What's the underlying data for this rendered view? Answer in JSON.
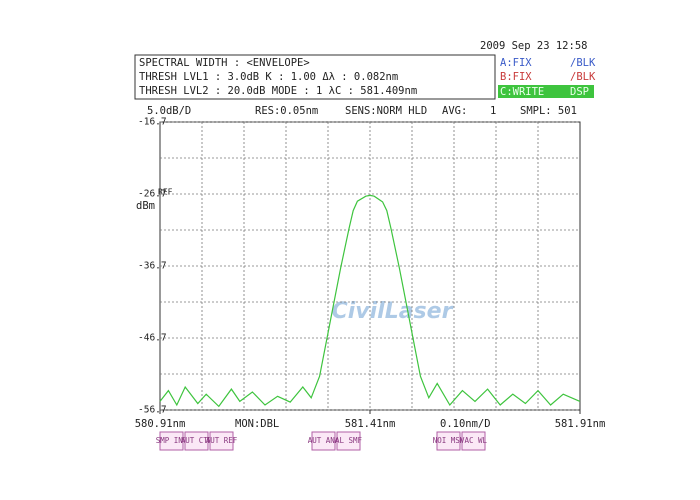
{
  "chart_data": {
    "type": "line",
    "x": [
      580.91,
      580.93,
      580.95,
      580.97,
      581.0,
      581.02,
      581.05,
      581.08,
      581.1,
      581.13,
      581.16,
      581.19,
      581.22,
      581.25,
      581.27,
      581.29,
      581.3,
      581.32,
      581.34,
      581.36,
      581.37,
      581.38,
      581.4,
      581.41,
      581.42,
      581.44,
      581.45,
      581.46,
      581.48,
      581.5,
      581.52,
      581.53,
      581.55,
      581.57,
      581.6,
      581.63,
      581.66,
      581.69,
      581.72,
      581.75,
      581.78,
      581.81,
      581.84,
      581.87,
      581.91
    ],
    "series": [
      {
        "color": "#3ec43e",
        "values": [
          -55.5,
          -54,
          -56,
          -53.5,
          -55.8,
          -54.5,
          -56.2,
          -53.8,
          -55.5,
          -54.2,
          -56,
          -54.8,
          -55.6,
          -53.5,
          -55,
          -52,
          -49,
          -43,
          -37,
          -31.5,
          -29,
          -27.7,
          -27.0,
          -26.9,
          -27.0,
          -27.8,
          -29,
          -31.5,
          -37,
          -43,
          -49,
          -52,
          -55,
          -53,
          -56,
          -54,
          -55.5,
          -53.8,
          -56,
          -54.5,
          -55.8,
          -54,
          -56,
          -54.5,
          -55.5
        ]
      }
    ],
    "xlim": [
      580.91,
      581.91
    ],
    "xticks": [
      {
        "value": 580.91,
        "label": "580.91nm"
      },
      {
        "value": 581.41,
        "label": "581.41nm"
      },
      {
        "value": 581.91,
        "label": "581.91nm"
      }
    ],
    "ylim": [
      -56.7,
      -16.7
    ],
    "yticks": [
      -56.7,
      -46.7,
      -36.7,
      -26.7,
      -16.7
    ],
    "y_unit": "dBm",
    "ref_label": "REF",
    "grid": true
  },
  "header": {
    "date": "2009 Sep 23 12:58",
    "lines": [
      "SPECTRAL WIDTH : <ENVELOPE>",
      "THRESH LVL1 :  3.0dB   K :  1.00   Δλ :   0.082nm",
      "THRESH LVL2 : 20.0dB   MODE :  1   λC :  581.409nm"
    ],
    "traces": [
      [
        "A:FIX",
        "/BLK"
      ],
      [
        "B:FIX",
        "/BLK"
      ],
      [
        "C:WRITE",
        "DSP"
      ]
    ]
  },
  "status": [
    "5.0dB/D",
    "RES:0.05nm",
    "SENS:NORM HLD",
    "AVG:",
    "1",
    "SMPL: 501"
  ],
  "footer": {
    "mon": "MON:DBL",
    "span": "0.10nm/D"
  },
  "softkeys": [
    "SMP INT",
    "AUT CTR",
    "AUT REF",
    "AUT ANA",
    "AL SMF",
    "NOI MSK",
    "VAC WL"
  ],
  "watermark": "CivilLaser"
}
